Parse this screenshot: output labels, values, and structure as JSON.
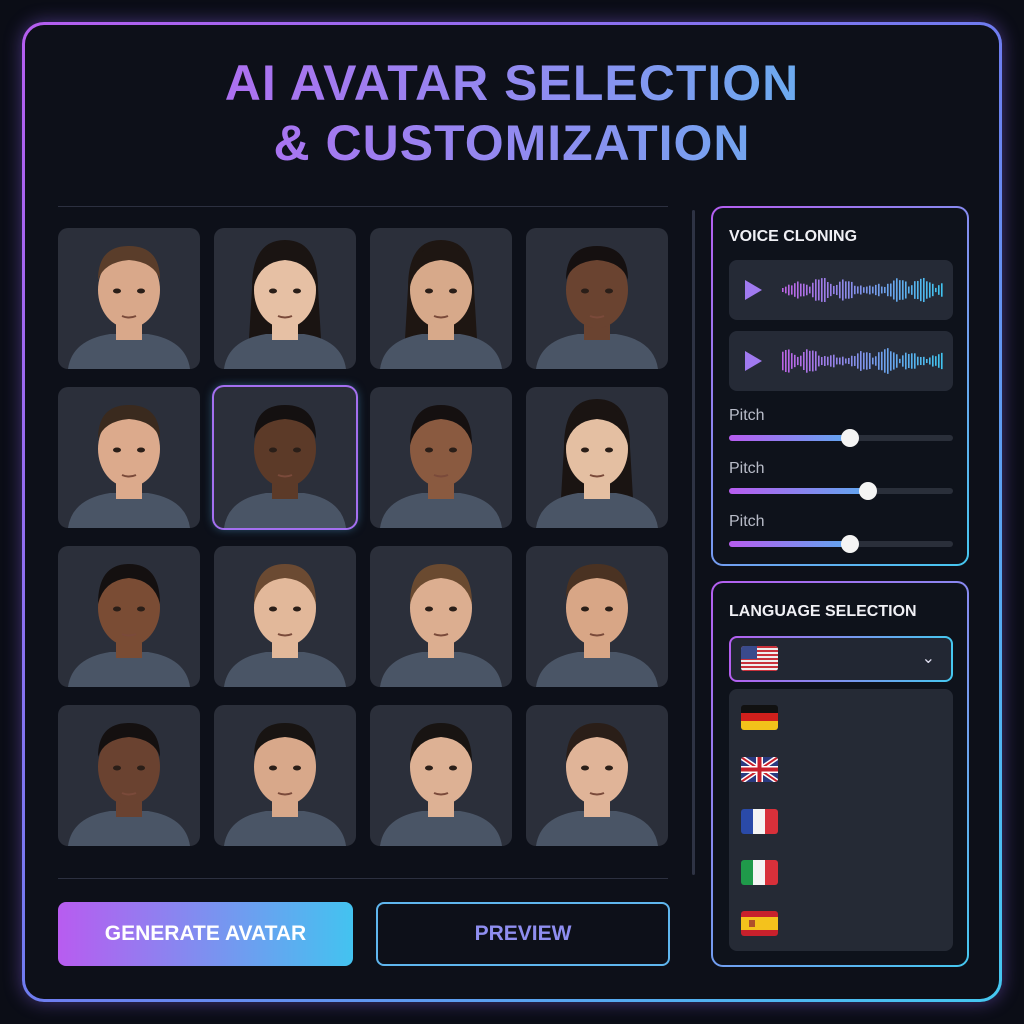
{
  "title": {
    "line1": "AI AVATAR SELECTION",
    "line2": "& CUSTOMIZATION"
  },
  "colors": {
    "accent_purple": "#b85cf0",
    "accent_cyan": "#43c3f0",
    "selected_tile_border": "#a46ff0"
  },
  "avatar_grid": {
    "selected_index": 5,
    "avatars": [
      {
        "skin": "#d9a88a",
        "hair": "#5a3d2a",
        "hair_style": "short"
      },
      {
        "skin": "#e6c0a4",
        "hair": "#1a1412",
        "hair_style": "long"
      },
      {
        "skin": "#d7a98a",
        "hair": "#1e1612",
        "hair_style": "long"
      },
      {
        "skin": "#6a4330",
        "hair": "#151010",
        "hair_style": "short"
      },
      {
        "skin": "#dcaa8c",
        "hair": "#3a2a1e",
        "hair_style": "short"
      },
      {
        "skin": "#5c3a28",
        "hair": "#141010",
        "hair_style": "short"
      },
      {
        "skin": "#8a5a40",
        "hair": "#151010",
        "hair_style": "bun"
      },
      {
        "skin": "#e4bfa2",
        "hair": "#1a1412",
        "hair_style": "long"
      },
      {
        "skin": "#7a4c34",
        "hair": "#141010",
        "hair_style": "bun"
      },
      {
        "skin": "#e2b89a",
        "hair": "#6b4a32",
        "hair_style": "bun"
      },
      {
        "skin": "#dcae90",
        "hair": "#6a4a30",
        "hair_style": "bun"
      },
      {
        "skin": "#d8a686",
        "hair": "#4a3222",
        "hair_style": "short"
      },
      {
        "skin": "#6a4230",
        "hair": "#141010",
        "hair_style": "short"
      },
      {
        "skin": "#d8a88a",
        "hair": "#181412",
        "hair_style": "short"
      },
      {
        "skin": "#ddb194",
        "hair": "#181412",
        "hair_style": "bun"
      },
      {
        "skin": "#e0b498",
        "hair": "#2a1e18",
        "hair_style": "bun"
      }
    ]
  },
  "buttons": {
    "generate": "GENERATE AVATAR",
    "preview": "PREVIEW"
  },
  "voice_cloning": {
    "title": "VOICE CLONING",
    "samples": [
      {
        "icon": "play-icon"
      },
      {
        "icon": "play-icon"
      }
    ],
    "sliders": [
      {
        "label": "Pitch",
        "value": 0.54
      },
      {
        "label": "Pitch",
        "value": 0.62
      },
      {
        "label": "Pitch",
        "value": 0.54
      }
    ]
  },
  "language_selection": {
    "title": "LANGUAGE SELECTION",
    "selected": "us",
    "options": [
      "de",
      "gb",
      "fr",
      "it",
      "es"
    ],
    "dropdown_icon": "chevron-down-icon"
  }
}
